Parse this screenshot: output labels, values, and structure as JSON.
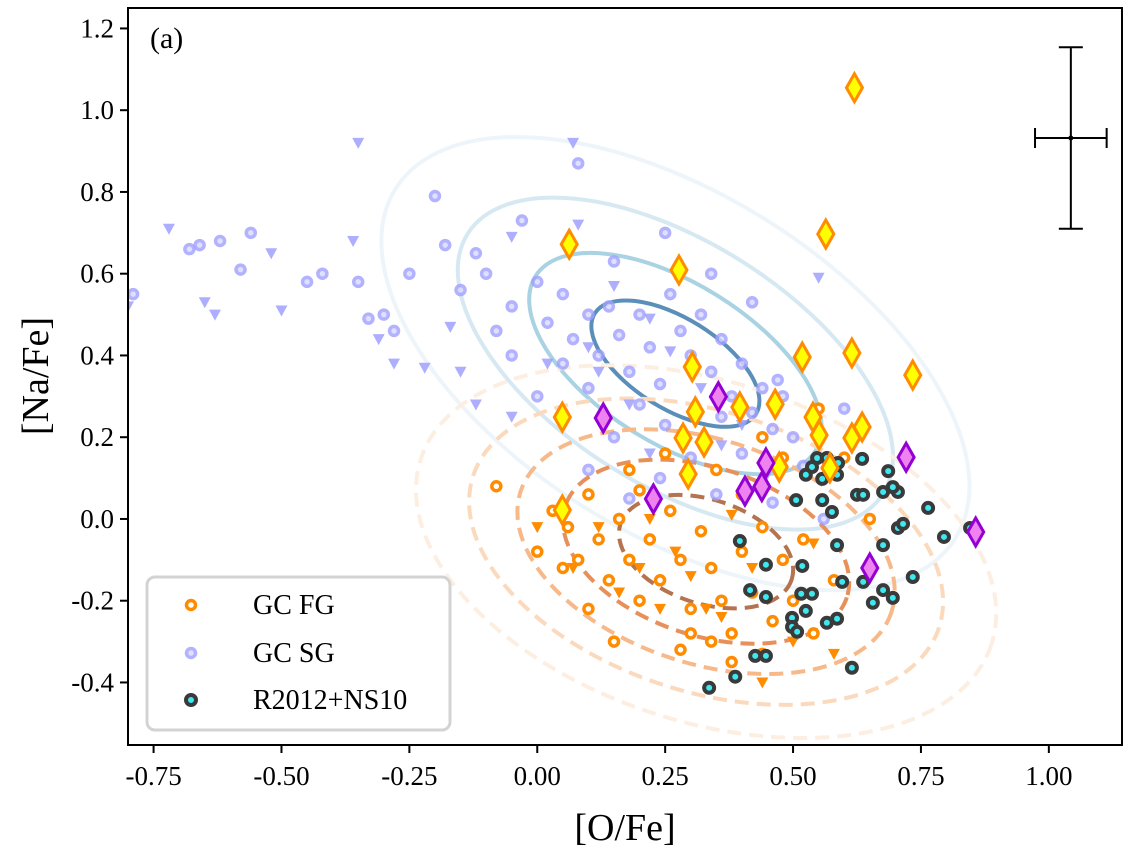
{
  "chart_data": {
    "type": "scatter",
    "panel_label": "(a)",
    "xlabel": "[O/Fe]",
    "ylabel": "[Na/Fe]",
    "xlim": [
      -0.8,
      1.143
    ],
    "ylim": [
      -0.553,
      1.25
    ],
    "xticks": [
      -0.75,
      -0.5,
      -0.25,
      0.0,
      0.25,
      0.5,
      0.75,
      1.0
    ],
    "xtick_labels": [
      "-0.75",
      "-0.50",
      "-0.25",
      "0.00",
      "0.25",
      "0.50",
      "0.75",
      "1.00"
    ],
    "yticks": [
      1.2,
      1.0,
      0.8,
      0.6,
      0.4,
      0.2,
      0.0,
      -0.2,
      -0.4
    ],
    "ytick_labels": [
      "1.2",
      "1.0",
      "0.8",
      "0.6",
      "0.4",
      "0.2",
      "0.0",
      "-0.2",
      "-0.4"
    ],
    "grid": false,
    "legend": {
      "placement": "lower-left",
      "entries": [
        "GC FG",
        "GC SG",
        "R2012+NS10"
      ]
    },
    "colors": {
      "fg": "#ff8c00",
      "sg": "#a0a0ff",
      "r2012_edge": "#3a3a3a",
      "r2012_face": "#3ee8f0",
      "yellow_diamond_face": "#ffff00",
      "yellow_diamond_edge": "#ff8c00",
      "purple_diamond_face": "#ee82ee",
      "purple_diamond_edge": "#9400d3",
      "sg_contours": [
        "#eef5fa",
        "#d6e9f2",
        "#a9d3e3",
        "#5b8fb9"
      ],
      "fg_contours": [
        "#fdeee2",
        "#fbd9bd",
        "#f7b98a",
        "#e8905a",
        "#b5734f"
      ]
    },
    "error_bar": {
      "x": 1.043,
      "y": 0.932,
      "xerr": 0.07,
      "yerr": 0.222
    },
    "series": [
      {
        "name": "GC FG",
        "marker": "circle",
        "points": [
          [
            -0.08,
            0.08
          ],
          [
            0.0,
            -0.08
          ],
          [
            0.03,
            0.02
          ],
          [
            0.06,
            -0.02
          ],
          [
            0.08,
            -0.1
          ],
          [
            0.1,
            0.06
          ],
          [
            0.12,
            -0.05
          ],
          [
            0.14,
            -0.15
          ],
          [
            0.16,
            0.0
          ],
          [
            0.18,
            -0.1
          ],
          [
            0.2,
            -0.2
          ],
          [
            0.22,
            -0.05
          ],
          [
            0.24,
            -0.15
          ],
          [
            0.26,
            0.02
          ],
          [
            0.28,
            -0.1
          ],
          [
            0.28,
            -0.32
          ],
          [
            0.3,
            -0.22
          ],
          [
            0.32,
            -0.03
          ],
          [
            0.34,
            -0.12
          ],
          [
            0.36,
            -0.2
          ],
          [
            0.38,
            -0.28
          ],
          [
            0.4,
            -0.08
          ],
          [
            0.42,
            -0.18
          ],
          [
            0.44,
            -0.02
          ],
          [
            0.46,
            -0.25
          ],
          [
            0.48,
            -0.1
          ],
          [
            0.5,
            -0.2
          ],
          [
            0.52,
            -0.05
          ],
          [
            0.54,
            -0.28
          ],
          [
            0.34,
            -0.3
          ],
          [
            0.38,
            -0.35
          ],
          [
            0.44,
            -0.33
          ],
          [
            0.18,
            0.12
          ],
          [
            0.25,
            0.16
          ],
          [
            0.35,
            0.12
          ],
          [
            0.44,
            0.2
          ],
          [
            0.48,
            0.15
          ],
          [
            0.55,
            0.27
          ],
          [
            0.6,
            0.15
          ],
          [
            0.65,
            0.0
          ],
          [
            0.1,
            -0.22
          ],
          [
            0.05,
            -0.12
          ],
          [
            0.15,
            -0.3
          ],
          [
            0.3,
            -0.28
          ],
          [
            0.2,
            0.07
          ],
          [
            0.4,
            0.06
          ],
          [
            0.58,
            -0.15
          ]
        ]
      },
      {
        "name": "GC FG",
        "marker": "triangle_down",
        "points": [
          [
            0.0,
            -0.02
          ],
          [
            0.07,
            -0.12
          ],
          [
            0.12,
            -0.02
          ],
          [
            0.16,
            -0.18
          ],
          [
            0.22,
            0.0
          ],
          [
            0.27,
            -0.08
          ],
          [
            0.3,
            -0.14
          ],
          [
            0.33,
            -0.22
          ],
          [
            0.38,
            0.01
          ],
          [
            0.42,
            -0.12
          ],
          [
            0.44,
            -0.4
          ],
          [
            0.5,
            -0.3
          ],
          [
            0.56,
            0.1
          ],
          [
            0.58,
            -0.33
          ],
          [
            0.24,
            -0.22
          ],
          [
            0.36,
            -0.24
          ],
          [
            0.54,
            -0.06
          ],
          [
            0.2,
            -0.12
          ]
        ]
      },
      {
        "name": "GC SG",
        "marker": "circle",
        "points": [
          [
            -0.79,
            0.55
          ],
          [
            -0.68,
            0.66
          ],
          [
            -0.66,
            0.67
          ],
          [
            -0.62,
            0.68
          ],
          [
            -0.58,
            0.61
          ],
          [
            -0.56,
            0.7
          ],
          [
            -0.45,
            0.58
          ],
          [
            -0.42,
            0.6
          ],
          [
            -0.35,
            0.58
          ],
          [
            -0.33,
            0.49
          ],
          [
            -0.3,
            0.5
          ],
          [
            -0.28,
            0.46
          ],
          [
            -0.25,
            0.6
          ],
          [
            -0.2,
            0.79
          ],
          [
            -0.18,
            0.67
          ],
          [
            -0.15,
            0.56
          ],
          [
            -0.12,
            0.65
          ],
          [
            -0.1,
            0.6
          ],
          [
            -0.08,
            0.46
          ],
          [
            -0.05,
            0.52
          ],
          [
            -0.03,
            0.73
          ],
          [
            0.0,
            0.58
          ],
          [
            0.02,
            0.48
          ],
          [
            0.05,
            0.55
          ],
          [
            0.07,
            0.44
          ],
          [
            0.08,
            0.87
          ],
          [
            0.1,
            0.5
          ],
          [
            0.12,
            0.4
          ],
          [
            0.14,
            0.52
          ],
          [
            0.16,
            0.45
          ],
          [
            0.18,
            0.36
          ],
          [
            0.2,
            0.5
          ],
          [
            0.22,
            0.42
          ],
          [
            0.24,
            0.33
          ],
          [
            0.26,
            0.55
          ],
          [
            0.28,
            0.46
          ],
          [
            0.3,
            0.4
          ],
          [
            0.32,
            0.5
          ],
          [
            0.34,
            0.36
          ],
          [
            0.36,
            0.44
          ],
          [
            0.38,
            0.3
          ],
          [
            0.4,
            0.38
          ],
          [
            0.42,
            0.26
          ],
          [
            0.44,
            0.32
          ],
          [
            0.46,
            0.22
          ],
          [
            0.48,
            0.3
          ],
          [
            0.5,
            0.2
          ],
          [
            0.36,
            0.25
          ],
          [
            0.4,
            0.16
          ],
          [
            0.3,
            0.15
          ],
          [
            0.25,
            0.23
          ],
          [
            0.2,
            0.28
          ],
          [
            0.15,
            0.2
          ],
          [
            0.1,
            0.32
          ],
          [
            0.05,
            0.38
          ],
          [
            0.0,
            0.3
          ],
          [
            -0.05,
            0.4
          ],
          [
            0.24,
            0.1
          ],
          [
            0.35,
            0.06
          ],
          [
            0.46,
            0.04
          ],
          [
            0.52,
            0.13
          ],
          [
            0.56,
            0.0
          ],
          [
            0.18,
            0.05
          ],
          [
            0.1,
            0.12
          ],
          [
            0.6,
            0.27
          ],
          [
            0.47,
            0.34
          ],
          [
            0.15,
            0.63
          ],
          [
            0.25,
            0.7
          ],
          [
            0.34,
            0.6
          ],
          [
            0.42,
            0.53
          ]
        ]
      },
      {
        "name": "GC SG",
        "marker": "triangle_down",
        "points": [
          [
            -0.8,
            0.52
          ],
          [
            -0.72,
            0.71
          ],
          [
            -0.65,
            0.53
          ],
          [
            -0.63,
            0.5
          ],
          [
            -0.5,
            0.51
          ],
          [
            -0.52,
            0.65
          ],
          [
            -0.35,
            0.92
          ],
          [
            -0.36,
            0.68
          ],
          [
            -0.31,
            0.44
          ],
          [
            -0.28,
            0.38
          ],
          [
            -0.22,
            0.37
          ],
          [
            -0.15,
            0.36
          ],
          [
            -0.05,
            0.25
          ],
          [
            -0.05,
            0.69
          ],
          [
            0.07,
            0.92
          ],
          [
            0.08,
            0.72
          ],
          [
            0.15,
            0.57
          ],
          [
            0.22,
            0.49
          ],
          [
            0.26,
            0.41
          ],
          [
            0.32,
            0.32
          ],
          [
            0.4,
            0.23
          ],
          [
            0.55,
            0.59
          ],
          [
            -0.12,
            0.28
          ],
          [
            0.02,
            0.38
          ],
          [
            0.12,
            0.36
          ],
          [
            0.18,
            0.28
          ],
          [
            0.36,
            0.18
          ],
          [
            0.45,
            0.11
          ],
          [
            0.22,
            0.16
          ],
          [
            -0.17,
            0.47
          ],
          [
            0.1,
            0.42
          ]
        ]
      },
      {
        "name": "R2012+NS10",
        "marker": "circle",
        "points": [
          [
            0.635,
            0.147
          ],
          [
            0.686,
            0.117
          ],
          [
            0.547,
            0.149
          ],
          [
            0.566,
            0.149
          ],
          [
            0.588,
            0.137
          ],
          [
            0.537,
            0.127
          ],
          [
            0.525,
            0.108
          ],
          [
            0.557,
            0.098
          ],
          [
            0.586,
            0.108
          ],
          [
            0.676,
            0.066
          ],
          [
            0.705,
            0.066
          ],
          [
            0.695,
            0.078
          ],
          [
            0.625,
            0.059
          ],
          [
            0.637,
            0.059
          ],
          [
            0.506,
            0.046
          ],
          [
            0.557,
            0.046
          ],
          [
            0.576,
            0.017
          ],
          [
            0.764,
            0.027
          ],
          [
            0.705,
            -0.022
          ],
          [
            0.715,
            -0.012
          ],
          [
            0.795,
            -0.044
          ],
          [
            0.846,
            -0.022
          ],
          [
            0.396,
            -0.054
          ],
          [
            0.586,
            -0.064
          ],
          [
            0.676,
            -0.064
          ],
          [
            0.447,
            -0.112
          ],
          [
            0.518,
            -0.115
          ],
          [
            0.637,
            -0.154
          ],
          [
            0.596,
            -0.154
          ],
          [
            0.734,
            -0.142
          ],
          [
            0.676,
            -0.174
          ],
          [
            0.695,
            -0.193
          ],
          [
            0.656,
            -0.205
          ],
          [
            0.416,
            -0.174
          ],
          [
            0.447,
            -0.191
          ],
          [
            0.516,
            -0.183
          ],
          [
            0.537,
            -0.183
          ],
          [
            0.525,
            -0.225
          ],
          [
            0.498,
            -0.242
          ],
          [
            0.498,
            -0.264
          ],
          [
            0.508,
            -0.276
          ],
          [
            0.566,
            -0.254
          ],
          [
            0.586,
            -0.244
          ],
          [
            0.426,
            -0.335
          ],
          [
            0.447,
            -0.335
          ],
          [
            0.615,
            -0.364
          ],
          [
            0.387,
            -0.386
          ],
          [
            0.336,
            -0.413
          ]
        ]
      },
      {
        "marker": "diamond_yellow",
        "points": [
          [
            0.62,
            1.055
          ],
          [
            0.0625,
            0.672
          ],
          [
            0.277,
            0.609
          ],
          [
            0.564,
            0.697
          ],
          [
            0.303,
            0.372
          ],
          [
            0.518,
            0.396
          ],
          [
            0.615,
            0.406
          ],
          [
            0.734,
            0.352
          ],
          [
            0.049,
            0.249
          ],
          [
            0.396,
            0.274
          ],
          [
            0.465,
            0.281
          ],
          [
            0.309,
            0.262
          ],
          [
            0.539,
            0.249
          ],
          [
            0.551,
            0.205
          ],
          [
            0.635,
            0.225
          ],
          [
            0.615,
            0.198
          ],
          [
            0.285,
            0.198
          ],
          [
            0.326,
            0.188
          ],
          [
            0.473,
            0.127
          ],
          [
            0.295,
            0.11
          ],
          [
            0.049,
            0.022
          ],
          [
            0.572,
            0.125
          ]
        ]
      },
      {
        "marker": "diamond_purple",
        "points": [
          [
            0.129,
            0.247
          ],
          [
            0.354,
            0.299
          ],
          [
            0.721,
            0.151
          ],
          [
            0.227,
            0.049
          ],
          [
            0.406,
            0.068
          ],
          [
            0.439,
            0.079
          ],
          [
            0.447,
            0.137
          ],
          [
            0.857,
            -0.032
          ],
          [
            0.65,
            -0.12
          ]
        ]
      }
    ]
  }
}
